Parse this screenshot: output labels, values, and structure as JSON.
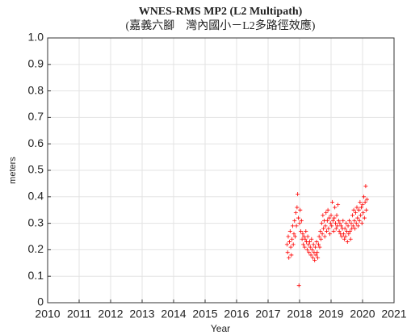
{
  "chart_data": {
    "type": "scatter",
    "title": "WNES-RMS MP2 (L2 Multipath)",
    "subtitle": "(嘉義六腳　灣內國小－L2多路徑效應)",
    "xlabel": "Year",
    "ylabel": "meters",
    "color": "#ff0000",
    "marker": "+",
    "grid": true,
    "xlim": [
      2010,
      2021
    ],
    "xticks": [
      2010,
      2011,
      2012,
      2013,
      2014,
      2015,
      2016,
      2017,
      2018,
      2019,
      2020,
      2021
    ],
    "ylim": [
      0,
      1
    ],
    "yticks": [
      0,
      0.1,
      0.2,
      0.3,
      0.4,
      0.5,
      0.6,
      0.7,
      0.8,
      0.9,
      {
        "value": 1,
        "label": "1.0"
      }
    ],
    "x": [
      2017.6,
      2017.62,
      2017.64,
      2017.66,
      2017.68,
      2017.7,
      2017.72,
      2017.74,
      2017.76,
      2017.78,
      2017.8,
      2017.82,
      2017.84,
      2017.86,
      2017.88,
      2017.9,
      2017.92,
      2017.94,
      2017.96,
      2017.98,
      2018.0,
      2018.02,
      2018.04,
      2018.06,
      2018.08,
      2018.1,
      2018.12,
      2018.14,
      2018.16,
      2018.18,
      2018.2,
      2018.22,
      2018.24,
      2018.26,
      2018.28,
      2018.3,
      2018.32,
      2018.34,
      2018.36,
      2018.38,
      2018.4,
      2018.42,
      2018.44,
      2018.46,
      2018.48,
      2018.5,
      2018.52,
      2018.54,
      2018.56,
      2018.58,
      2018.6,
      2018.62,
      2018.64,
      2018.66,
      2018.68,
      2018.7,
      2018.72,
      2018.74,
      2018.76,
      2018.78,
      2018.8,
      2018.82,
      2018.84,
      2018.86,
      2018.88,
      2018.9,
      2018.92,
      2018.94,
      2018.96,
      2018.98,
      2019.0,
      2019.02,
      2019.04,
      2019.06,
      2019.08,
      2019.1,
      2019.12,
      2019.14,
      2019.16,
      2019.18,
      2019.2,
      2019.22,
      2019.24,
      2019.26,
      2019.28,
      2019.3,
      2019.32,
      2019.34,
      2019.36,
      2019.38,
      2019.4,
      2019.42,
      2019.44,
      2019.46,
      2019.48,
      2019.5,
      2019.52,
      2019.54,
      2019.56,
      2019.58,
      2019.6,
      2019.62,
      2019.64,
      2019.66,
      2019.68,
      2019.7,
      2019.72,
      2019.74,
      2019.76,
      2019.78,
      2019.8,
      2019.82,
      2019.84,
      2019.86,
      2019.88,
      2019.9,
      2019.92,
      2019.94,
      2019.96,
      2019.98,
      2020.0,
      2020.02,
      2020.04,
      2020.06,
      2020.08,
      2020.1,
      2020.12,
      2020.14
    ],
    "values": [
      0.22,
      0.19,
      0.25,
      0.17,
      0.23,
      0.27,
      0.21,
      0.18,
      0.24,
      0.29,
      0.22,
      0.26,
      0.31,
      0.25,
      0.34,
      0.29,
      0.36,
      0.41,
      0.32,
      0.065,
      0.3,
      0.35,
      0.27,
      0.31,
      0.24,
      0.26,
      0.22,
      0.25,
      0.21,
      0.24,
      0.27,
      0.23,
      0.2,
      0.25,
      0.22,
      0.19,
      0.23,
      0.21,
      0.18,
      0.24,
      0.2,
      0.17,
      0.22,
      0.19,
      0.16,
      0.21,
      0.18,
      0.23,
      0.19,
      0.17,
      0.22,
      0.25,
      0.21,
      0.27,
      0.24,
      0.3,
      0.26,
      0.33,
      0.28,
      0.31,
      0.25,
      0.29,
      0.34,
      0.27,
      0.31,
      0.35,
      0.28,
      0.32,
      0.26,
      0.3,
      0.33,
      0.29,
      0.38,
      0.31,
      0.27,
      0.32,
      0.36,
      0.3,
      0.28,
      0.33,
      0.29,
      0.37,
      0.31,
      0.27,
      0.3,
      0.26,
      0.29,
      0.25,
      0.28,
      0.31,
      0.26,
      0.24,
      0.28,
      0.25,
      0.3,
      0.27,
      0.23,
      0.29,
      0.26,
      0.31,
      0.27,
      0.24,
      0.3,
      0.28,
      0.33,
      0.29,
      0.35,
      0.31,
      0.28,
      0.34,
      0.3,
      0.36,
      0.32,
      0.29,
      0.35,
      0.31,
      0.38,
      0.33,
      0.36,
      0.3,
      0.37,
      0.34,
      0.4,
      0.32,
      0.38,
      0.44,
      0.35,
      0.39
    ]
  }
}
